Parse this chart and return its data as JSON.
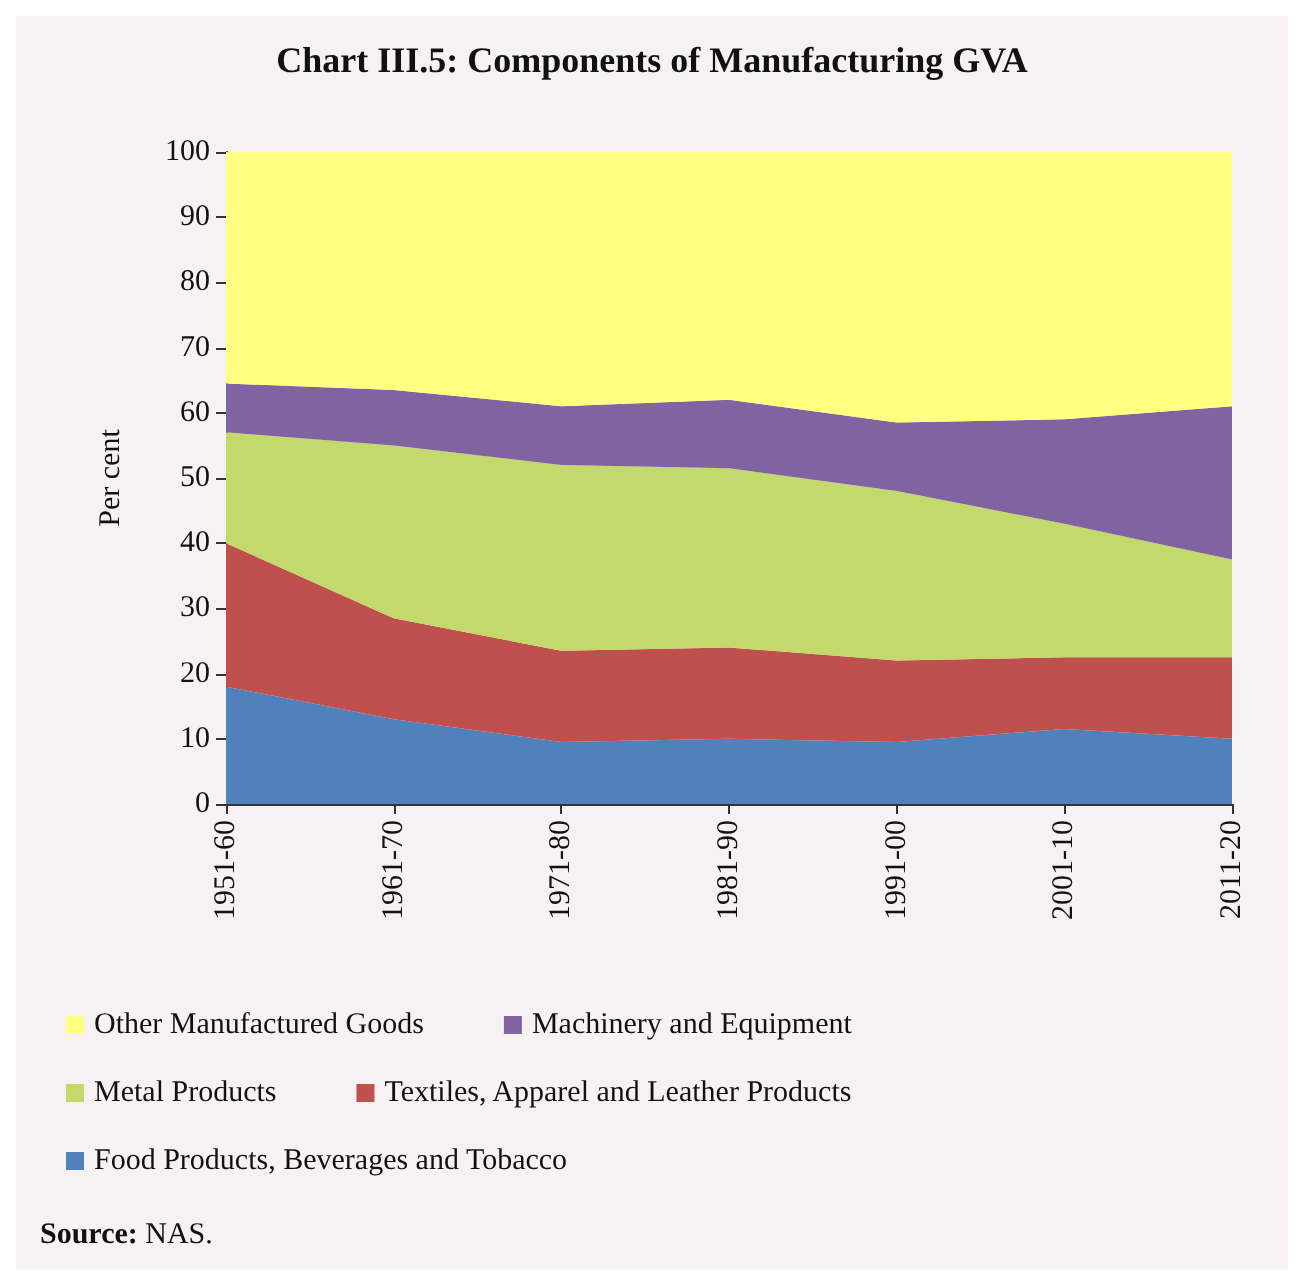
{
  "chart_data": {
    "type": "area",
    "stacked": true,
    "title": "Chart III.5: Components of Manufacturing GVA",
    "ylabel": "Per cent",
    "categories": [
      "1951-60",
      "1961-70",
      "1971-80",
      "1981-90",
      "1991-00",
      "2001-10",
      "2011-20"
    ],
    "series": [
      {
        "name": "Food Products, Beverages and Tobacco",
        "color": "#4f81bd",
        "values": [
          18,
          13,
          9.5,
          10,
          9.5,
          11.5,
          10
        ]
      },
      {
        "name": "Textiles, Apparel and Leather Products",
        "color": "#c0504d",
        "values": [
          22,
          15.5,
          14,
          14,
          12.5,
          11,
          12.5
        ]
      },
      {
        "name": "Metal Products",
        "color": "#c3d96b",
        "values": [
          17,
          26.5,
          28.5,
          27.5,
          26,
          20.5,
          15
        ]
      },
      {
        "name": "Machinery and Equipment",
        "color": "#8064a2",
        "values": [
          7.5,
          8.5,
          9,
          10.5,
          10.5,
          16,
          23.5
        ]
      },
      {
        "name": "Other Manufactured Goods",
        "color": "#ffff80",
        "values": [
          35.5,
          36.5,
          39,
          38,
          41.5,
          41,
          39
        ]
      }
    ],
    "ylim": [
      0,
      100
    ],
    "yticks": [
      0,
      10,
      20,
      30,
      40,
      50,
      60,
      70,
      80,
      90,
      100
    ],
    "grid": false,
    "legend": "bottom",
    "annotations": [
      "Source: NAS."
    ]
  }
}
